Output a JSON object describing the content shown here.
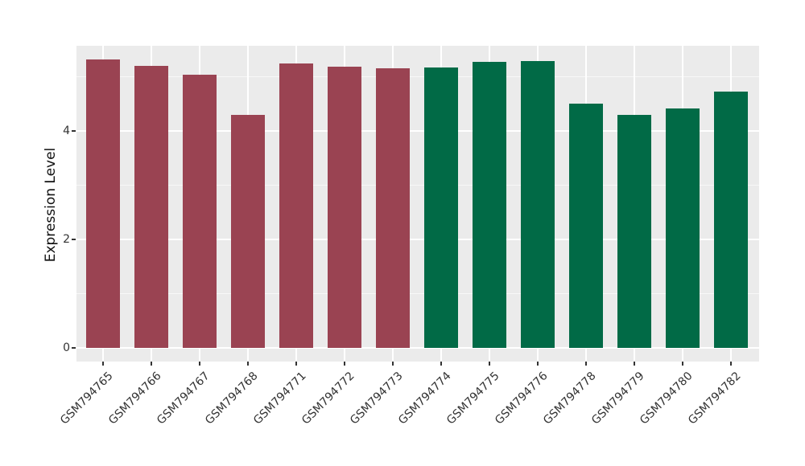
{
  "chart_data": {
    "type": "bar",
    "title": "",
    "xlabel": "",
    "ylabel": "Expression Level",
    "categories": [
      "GSM794765",
      "GSM794766",
      "GSM794767",
      "GSM794768",
      "GSM794771",
      "GSM794772",
      "GSM794773",
      "GSM794774",
      "GSM794775",
      "GSM794776",
      "GSM794778",
      "GSM794779",
      "GSM794780",
      "GSM794782"
    ],
    "values": [
      5.32,
      5.2,
      5.04,
      4.3,
      5.25,
      5.19,
      5.16,
      5.17,
      5.27,
      5.29,
      4.5,
      4.3,
      4.41,
      4.73
    ],
    "groups": [
      "group1",
      "group1",
      "group1",
      "group1",
      "group1",
      "group1",
      "group1",
      "group2",
      "group2",
      "group2",
      "group2",
      "group2",
      "group2",
      "group2"
    ],
    "group_colors": {
      "group1": "#9A4352",
      "group2": "#016A46"
    },
    "y_axis": {
      "ticks": [
        0,
        2,
        4
      ],
      "minor_ticks": [
        1,
        3,
        5
      ],
      "range": [
        -0.26,
        5.57
      ]
    },
    "x_tick_angle": 45,
    "grid": true,
    "legend": "none",
    "colors": {
      "panel_background": "#EBEBEB",
      "figure_background": "#FFFFFF",
      "gridline": "#FFFFFF",
      "axis_text": "#333333",
      "axis_title": "#111111"
    }
  }
}
